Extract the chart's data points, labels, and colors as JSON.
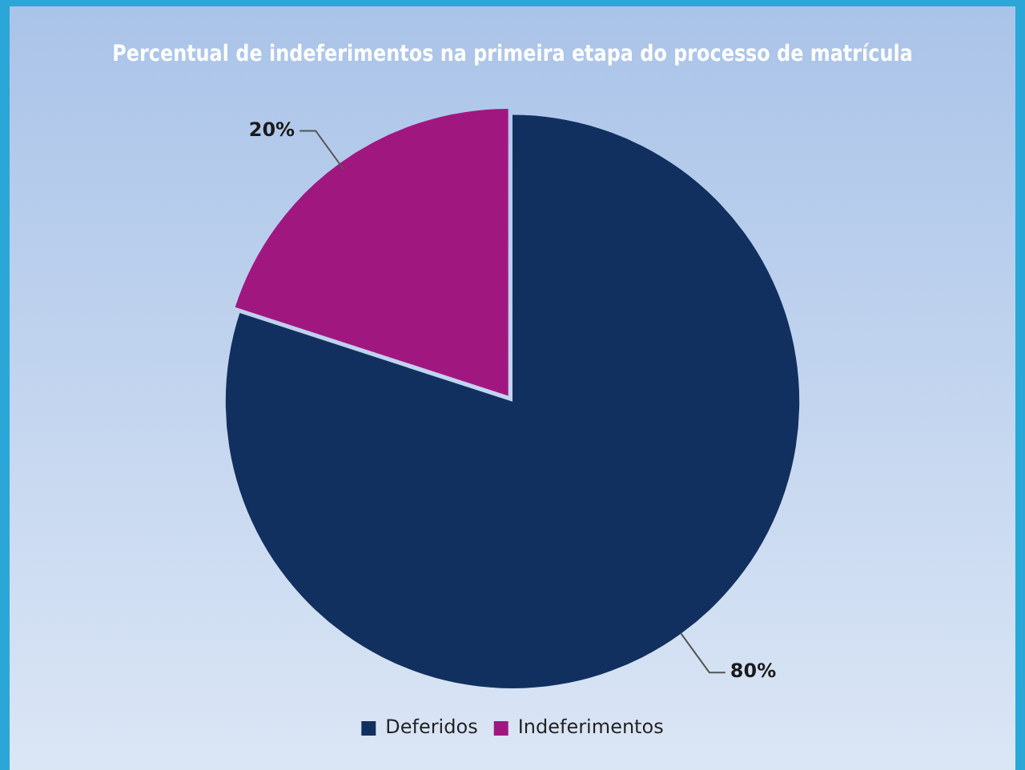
{
  "chart_data": {
    "type": "pie",
    "title": "Percentual de indeferimentos na primeira etapa do processo de matrícula",
    "categories": [
      "Deferidos",
      "Indeferimentos"
    ],
    "values": [
      80,
      20
    ],
    "colors": [
      "#12305f",
      "#a0187f"
    ],
    "value_labels": [
      "80%",
      "20%"
    ],
    "legend": "bottom"
  }
}
